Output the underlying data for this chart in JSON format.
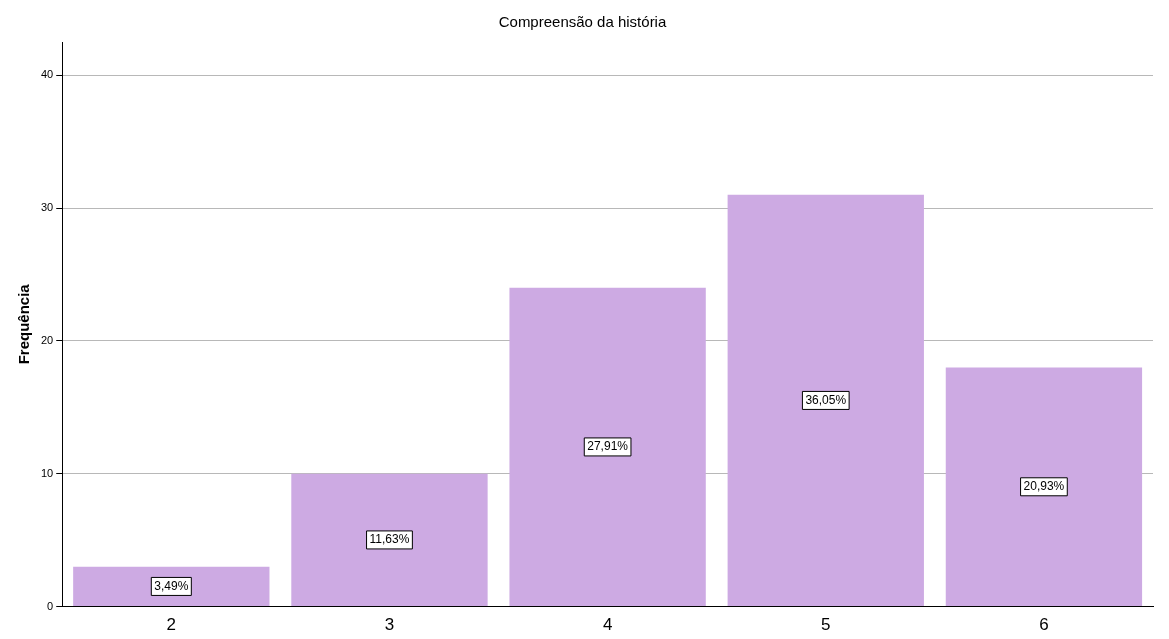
{
  "chart_data": {
    "type": "bar",
    "title": "Compreensão da história",
    "ylabel": "Frequência",
    "categories": [
      "2",
      "3",
      "4",
      "5",
      "6"
    ],
    "values": [
      3,
      10,
      24,
      31,
      18
    ],
    "annotations": [
      "3,49%",
      "11,63%",
      "27,91%",
      "36,05%",
      "20,93%"
    ],
    "color": "#cdaae3",
    "ylim": [
      0,
      42.5
    ],
    "yticks": [
      0,
      10,
      20,
      30,
      40
    ],
    "grid": "y",
    "legend": false
  }
}
